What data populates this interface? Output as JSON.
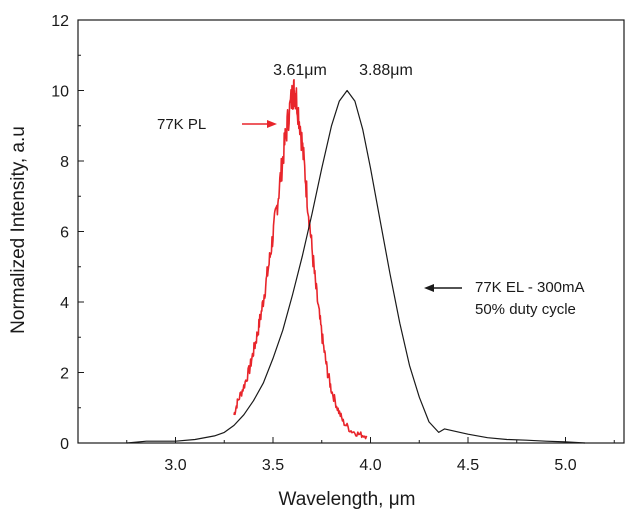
{
  "chart_data": {
    "type": "line",
    "xlabel": "Wavelength, μm",
    "ylabel": "Normalized Intensity, a.u",
    "xlim": [
      2.5,
      5.3
    ],
    "ylim": [
      0,
      12
    ],
    "x_ticks": [
      "3.0",
      "3.5",
      "4.0",
      "4.5",
      "5.0"
    ],
    "x_tick_values": [
      3.0,
      3.5,
      4.0,
      4.5,
      5.0
    ],
    "y_ticks": [
      "0",
      "2",
      "4",
      "6",
      "8",
      "10",
      "12"
    ],
    "y_tick_values": [
      0,
      2,
      4,
      6,
      8,
      10,
      12
    ],
    "grid": false,
    "series": [
      {
        "name": "77K PL",
        "color": "#e8252b",
        "noisy": true,
        "x": [
          3.3,
          3.32,
          3.35,
          3.38,
          3.4,
          3.42,
          3.44,
          3.46,
          3.48,
          3.5,
          3.52,
          3.54,
          3.56,
          3.58,
          3.6,
          3.61,
          3.62,
          3.64,
          3.66,
          3.68,
          3.7,
          3.72,
          3.74,
          3.76,
          3.78,
          3.8,
          3.83,
          3.86,
          3.9,
          3.94,
          3.98
        ],
        "y": [
          0.8,
          1.2,
          1.6,
          2.1,
          2.6,
          3.1,
          3.7,
          4.4,
          5.1,
          5.9,
          6.7,
          7.6,
          8.5,
          9.3,
          9.9,
          10.0,
          9.8,
          9.0,
          7.9,
          6.7,
          5.5,
          4.4,
          3.5,
          2.7,
          2.0,
          1.5,
          1.0,
          0.6,
          0.35,
          0.25,
          0.2
        ]
      },
      {
        "name": "77K EL - 300mA",
        "color": "#1a1a1a",
        "noisy": false,
        "x": [
          2.75,
          2.85,
          3.0,
          3.1,
          3.2,
          3.25,
          3.3,
          3.35,
          3.4,
          3.45,
          3.5,
          3.55,
          3.6,
          3.65,
          3.7,
          3.75,
          3.8,
          3.84,
          3.88,
          3.92,
          3.96,
          4.0,
          4.05,
          4.1,
          4.15,
          4.2,
          4.25,
          4.3,
          4.35,
          4.38,
          4.42,
          4.5,
          4.6,
          4.7,
          4.8,
          4.9,
          5.0,
          5.1
        ],
        "y": [
          0.0,
          0.05,
          0.05,
          0.1,
          0.2,
          0.3,
          0.5,
          0.8,
          1.2,
          1.7,
          2.4,
          3.2,
          4.2,
          5.3,
          6.5,
          7.8,
          9.0,
          9.7,
          10.0,
          9.7,
          8.9,
          7.8,
          6.3,
          4.8,
          3.4,
          2.2,
          1.3,
          0.6,
          0.3,
          0.4,
          0.35,
          0.25,
          0.15,
          0.1,
          0.08,
          0.05,
          0.03,
          0.0
        ]
      }
    ],
    "annotations": [
      {
        "text": "3.61μm",
        "x": 3.61,
        "y": 10.7
      },
      {
        "text": "3.88μm",
        "x": 3.88,
        "y": 10.7
      }
    ],
    "labels": {
      "pl": "77K PL",
      "el_line1": "77K EL - 300mA",
      "el_line2": "50% duty cycle"
    }
  }
}
